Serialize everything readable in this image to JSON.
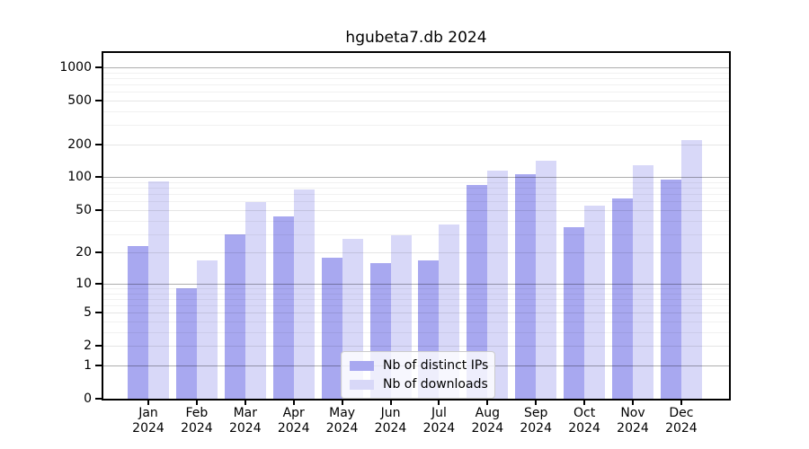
{
  "figure": {
    "title": "hgubeta7.db 2024",
    "background": "#ffffff"
  },
  "chart_data": {
    "type": "bar",
    "title": "hgubeta7.db 2024",
    "year": "2024",
    "categories": [
      "Jan",
      "Feb",
      "Mar",
      "Apr",
      "May",
      "Jun",
      "Jul",
      "Aug",
      "Sep",
      "Oct",
      "Nov",
      "Dec"
    ],
    "series": [
      {
        "name": "Nb of distinct IPs",
        "color": "#a8a8f0",
        "values": [
          23,
          9,
          30,
          44,
          18,
          16,
          17,
          85,
          106,
          35,
          64,
          96
        ]
      },
      {
        "name": "Nb of downloads",
        "color": "#d8d8f8",
        "values": [
          92,
          17,
          59,
          78,
          27,
          29,
          37,
          115,
          142,
          55,
          130,
          220
        ]
      }
    ],
    "yscale": "log(1+x)",
    "yticks": [
      0,
      1,
      2,
      5,
      10,
      20,
      50,
      100,
      200,
      500,
      1000
    ],
    "ylim": [
      0,
      1348
    ],
    "grid": true,
    "legend_position": "bottom-center",
    "colors": {
      "major_grid": "rgba(0,0,0,0.32)",
      "labeled_minor_grid": "rgba(0,0,0,0.10)",
      "minor_grid": "rgba(0,0,0,0.055)",
      "axis": "#000000"
    }
  }
}
